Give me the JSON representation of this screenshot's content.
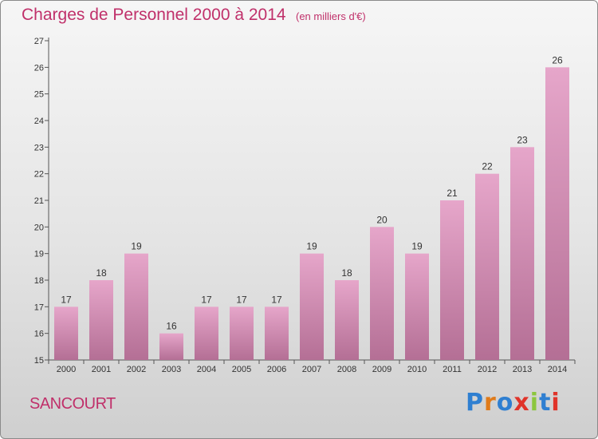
{
  "header": {
    "title": "Charges de Personnel 2000 à 2014",
    "subtitle": "(en milliers d'€)"
  },
  "footer": {
    "commune": "SANCOURT",
    "logo_text": "Proxiti"
  },
  "colors": {
    "title": "#c0306a",
    "bar_top": "#e6a6ca",
    "bar_bottom": "#b46f95"
  },
  "chart_data": {
    "type": "bar",
    "title": "Charges de Personnel 2000 à 2014",
    "subtitle": "(en milliers d'€)",
    "categories": [
      "2000",
      "2001",
      "2002",
      "2003",
      "2004",
      "2005",
      "2006",
      "2007",
      "2008",
      "2009",
      "2010",
      "2011",
      "2012",
      "2013",
      "2014"
    ],
    "values": [
      17,
      18,
      19,
      16,
      17,
      17,
      17,
      19,
      18,
      20,
      19,
      21,
      22,
      23,
      26
    ],
    "ylim": [
      15,
      27
    ],
    "yticks": [
      15,
      16,
      17,
      18,
      19,
      20,
      21,
      22,
      23,
      24,
      25,
      26,
      27
    ],
    "grid": false,
    "legend": "none"
  }
}
